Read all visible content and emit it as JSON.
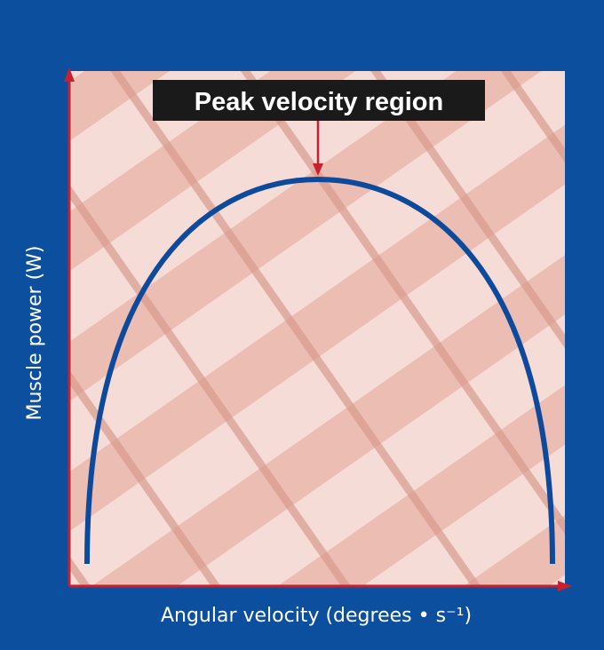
{
  "title_box": {
    "label": "Peak velocity region"
  },
  "axes": {
    "y_label": "Muscle power (W)",
    "x_label": "Angular velocity (degrees • s⁻¹)"
  }
}
